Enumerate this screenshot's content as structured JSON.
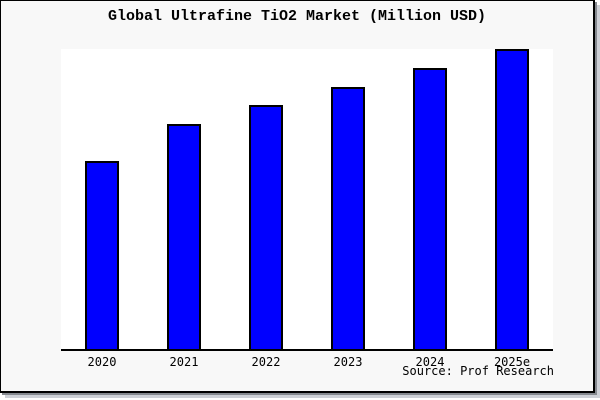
{
  "chart": {
    "title": "Global Ultrafine TiO2 Market (Million USD)",
    "source": "Source: Prof Research"
  },
  "colors": {
    "background": "#f8f8f8",
    "plot_background": "#ffffff",
    "bar_fill": "#0000ff",
    "bar_border": "#000000",
    "axis": "#000000",
    "text": "#000000",
    "frame_border": "#000000"
  },
  "chart_data": {
    "type": "bar",
    "title": "Global Ultrafine TiO2 Market (Million USD)",
    "categories": [
      "2020",
      "2021",
      "2022",
      "2023",
      "2024",
      "2025e"
    ],
    "values": [
      62.5,
      75.0,
      81.3,
      87.3,
      93.7,
      100.0
    ],
    "value_note": "No numeric y-axis or data labels are shown in the image; values are relative bar heights expressed as percent of the tallest (2025e) bar",
    "xlabel": "",
    "ylabel": "",
    "ylim": [
      0,
      101
    ],
    "grid": false,
    "legend": false,
    "y_axis_ticks_visible": false,
    "source": "Source: Prof Research"
  }
}
